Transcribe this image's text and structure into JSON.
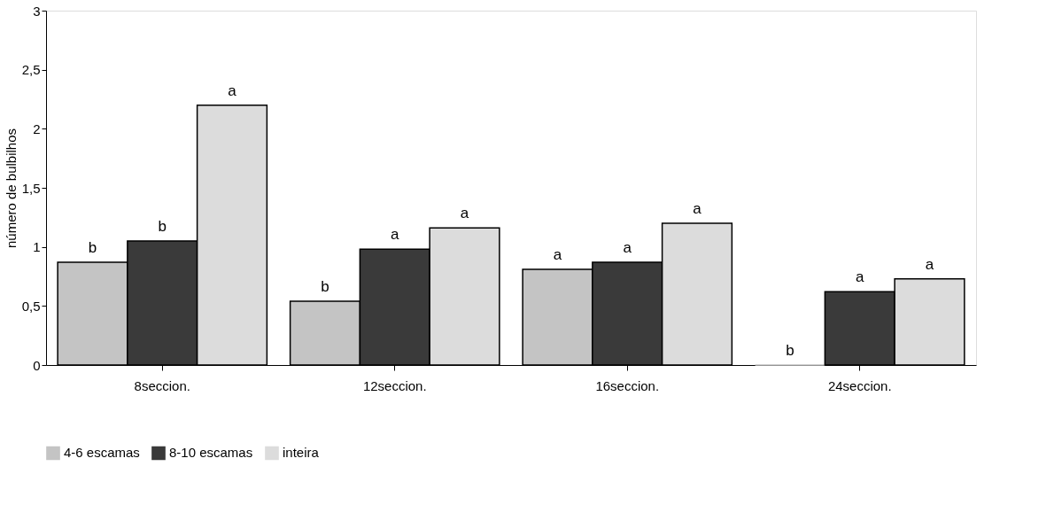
{
  "chart_data": {
    "type": "bar",
    "ylabel": "número de bulbilhos",
    "categories": [
      "8seccion.",
      "12seccion.",
      "16seccion.",
      "24seccion."
    ],
    "series": [
      {
        "name": "4-6 escamas",
        "color": "#c4c4c4",
        "values": [
          0.87,
          0.54,
          0.81,
          0
        ],
        "value_labels": [
          "b",
          "b",
          "a",
          "b"
        ]
      },
      {
        "name": "8-10 escamas",
        "color": "#3a3a3a",
        "values": [
          1.05,
          0.98,
          0.87,
          0.62
        ],
        "value_labels": [
          "b",
          "a",
          "a",
          "a"
        ]
      },
      {
        "name": "inteira",
        "color": "#dcdcdc",
        "values": [
          2.2,
          1.16,
          1.2,
          0.73
        ],
        "value_labels": [
          "a",
          "a",
          "a",
          "a"
        ]
      }
    ],
    "ylim": [
      0,
      3
    ],
    "yticks": [
      0,
      {
        "value": 0.5,
        "label": "0,5"
      },
      1,
      {
        "value": 1.5,
        "label": "1,5"
      },
      2,
      {
        "value": 2.5,
        "label": "2,5"
      },
      3
    ],
    "grid": false,
    "legend": "bottom left"
  }
}
